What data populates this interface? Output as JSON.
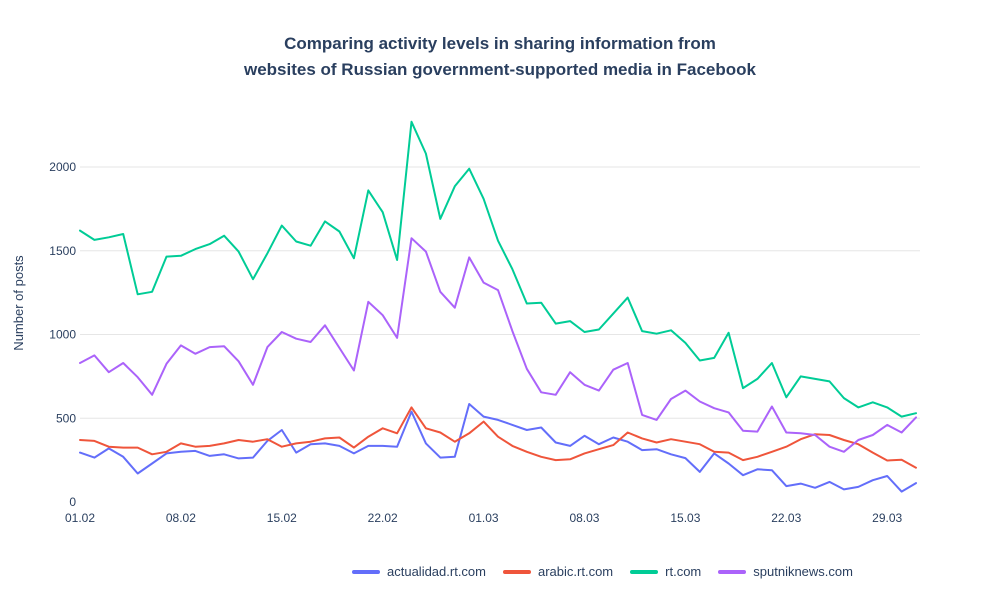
{
  "title": {
    "line1": "Comparing activity levels in sharing information from",
    "line2": "websites of Russian government-supported media in Facebook",
    "color": "#2a3f5f"
  },
  "styles": {
    "axis_text_color": "#2a3f5f",
    "grid_color": "#e6e6e6",
    "background": "#ffffff",
    "line_width": 2
  },
  "chart_data": {
    "type": "line",
    "title": "Comparing activity levels in sharing information from websites of Russian government-supported media in Facebook",
    "xlabel": "",
    "ylabel": "Number of posts",
    "x_unit": "daily values from 01.02 to 31.03",
    "x_tick_labels": [
      "01.02",
      "08.02",
      "15.02",
      "22.02",
      "01.03",
      "08.03",
      "15.03",
      "22.03",
      "29.03"
    ],
    "x_tick_day_index": [
      0,
      7,
      14,
      21,
      28,
      35,
      42,
      49,
      56
    ],
    "y_ticks": [
      0,
      500,
      1000,
      1500,
      2000
    ],
    "ylim": [
      0,
      2400
    ],
    "xlim_days": [
      0,
      58.3
    ],
    "grid": "horizontal",
    "legend_position": "bottom-center",
    "series": [
      {
        "name": "actualidad.rt.com",
        "color": "#636EFA",
        "values": [
          295,
          265,
          320,
          270,
          170,
          230,
          290,
          300,
          305,
          275,
          285,
          260,
          265,
          365,
          430,
          295,
          345,
          350,
          335,
          290,
          335,
          335,
          330,
          540,
          350,
          265,
          270,
          585,
          510,
          490,
          460,
          430,
          445,
          355,
          335,
          395,
          345,
          385,
          360,
          310,
          315,
          285,
          262,
          180,
          290,
          230,
          160,
          195,
          190,
          95,
          110,
          85,
          120,
          75,
          90,
          130,
          155,
          62,
          113
        ]
      },
      {
        "name": "arabic.rt.com",
        "color": "#EF553B",
        "values": [
          370,
          365,
          330,
          325,
          325,
          285,
          300,
          350,
          330,
          335,
          350,
          370,
          360,
          375,
          330,
          350,
          360,
          380,
          385,
          325,
          390,
          440,
          410,
          565,
          440,
          415,
          360,
          410,
          480,
          390,
          335,
          300,
          270,
          250,
          255,
          290,
          315,
          340,
          415,
          380,
          355,
          375,
          360,
          345,
          300,
          295,
          250,
          270,
          300,
          330,
          375,
          405,
          400,
          370,
          345,
          295,
          248,
          252,
          205
        ]
      },
      {
        "name": "rt.com",
        "color": "#00CC96",
        "values": [
          1620,
          1565,
          1580,
          1600,
          1240,
          1255,
          1465,
          1470,
          1510,
          1540,
          1590,
          1495,
          1330,
          1485,
          1650,
          1555,
          1530,
          1675,
          1615,
          1455,
          1860,
          1730,
          1445,
          2270,
          2080,
          1690,
          1885,
          1990,
          1810,
          1560,
          1390,
          1185,
          1190,
          1065,
          1080,
          1015,
          1030,
          1125,
          1220,
          1020,
          1005,
          1025,
          950,
          845,
          860,
          1010,
          680,
          735,
          830,
          625,
          750,
          735,
          720,
          620,
          565,
          595,
          565,
          510,
          530
        ]
      },
      {
        "name": "sputniknews.com",
        "color": "#AB63FA",
        "values": [
          830,
          875,
          775,
          830,
          745,
          640,
          825,
          935,
          885,
          925,
          930,
          840,
          700,
          925,
          1015,
          975,
          955,
          1055,
          920,
          785,
          1195,
          1115,
          980,
          1575,
          1495,
          1255,
          1160,
          1460,
          1310,
          1265,
          1020,
          795,
          655,
          640,
          775,
          700,
          665,
          790,
          830,
          520,
          490,
          615,
          665,
          600,
          560,
          535,
          425,
          420,
          570,
          415,
          410,
          400,
          330,
          300,
          370,
          400,
          460,
          415,
          505
        ]
      }
    ]
  }
}
